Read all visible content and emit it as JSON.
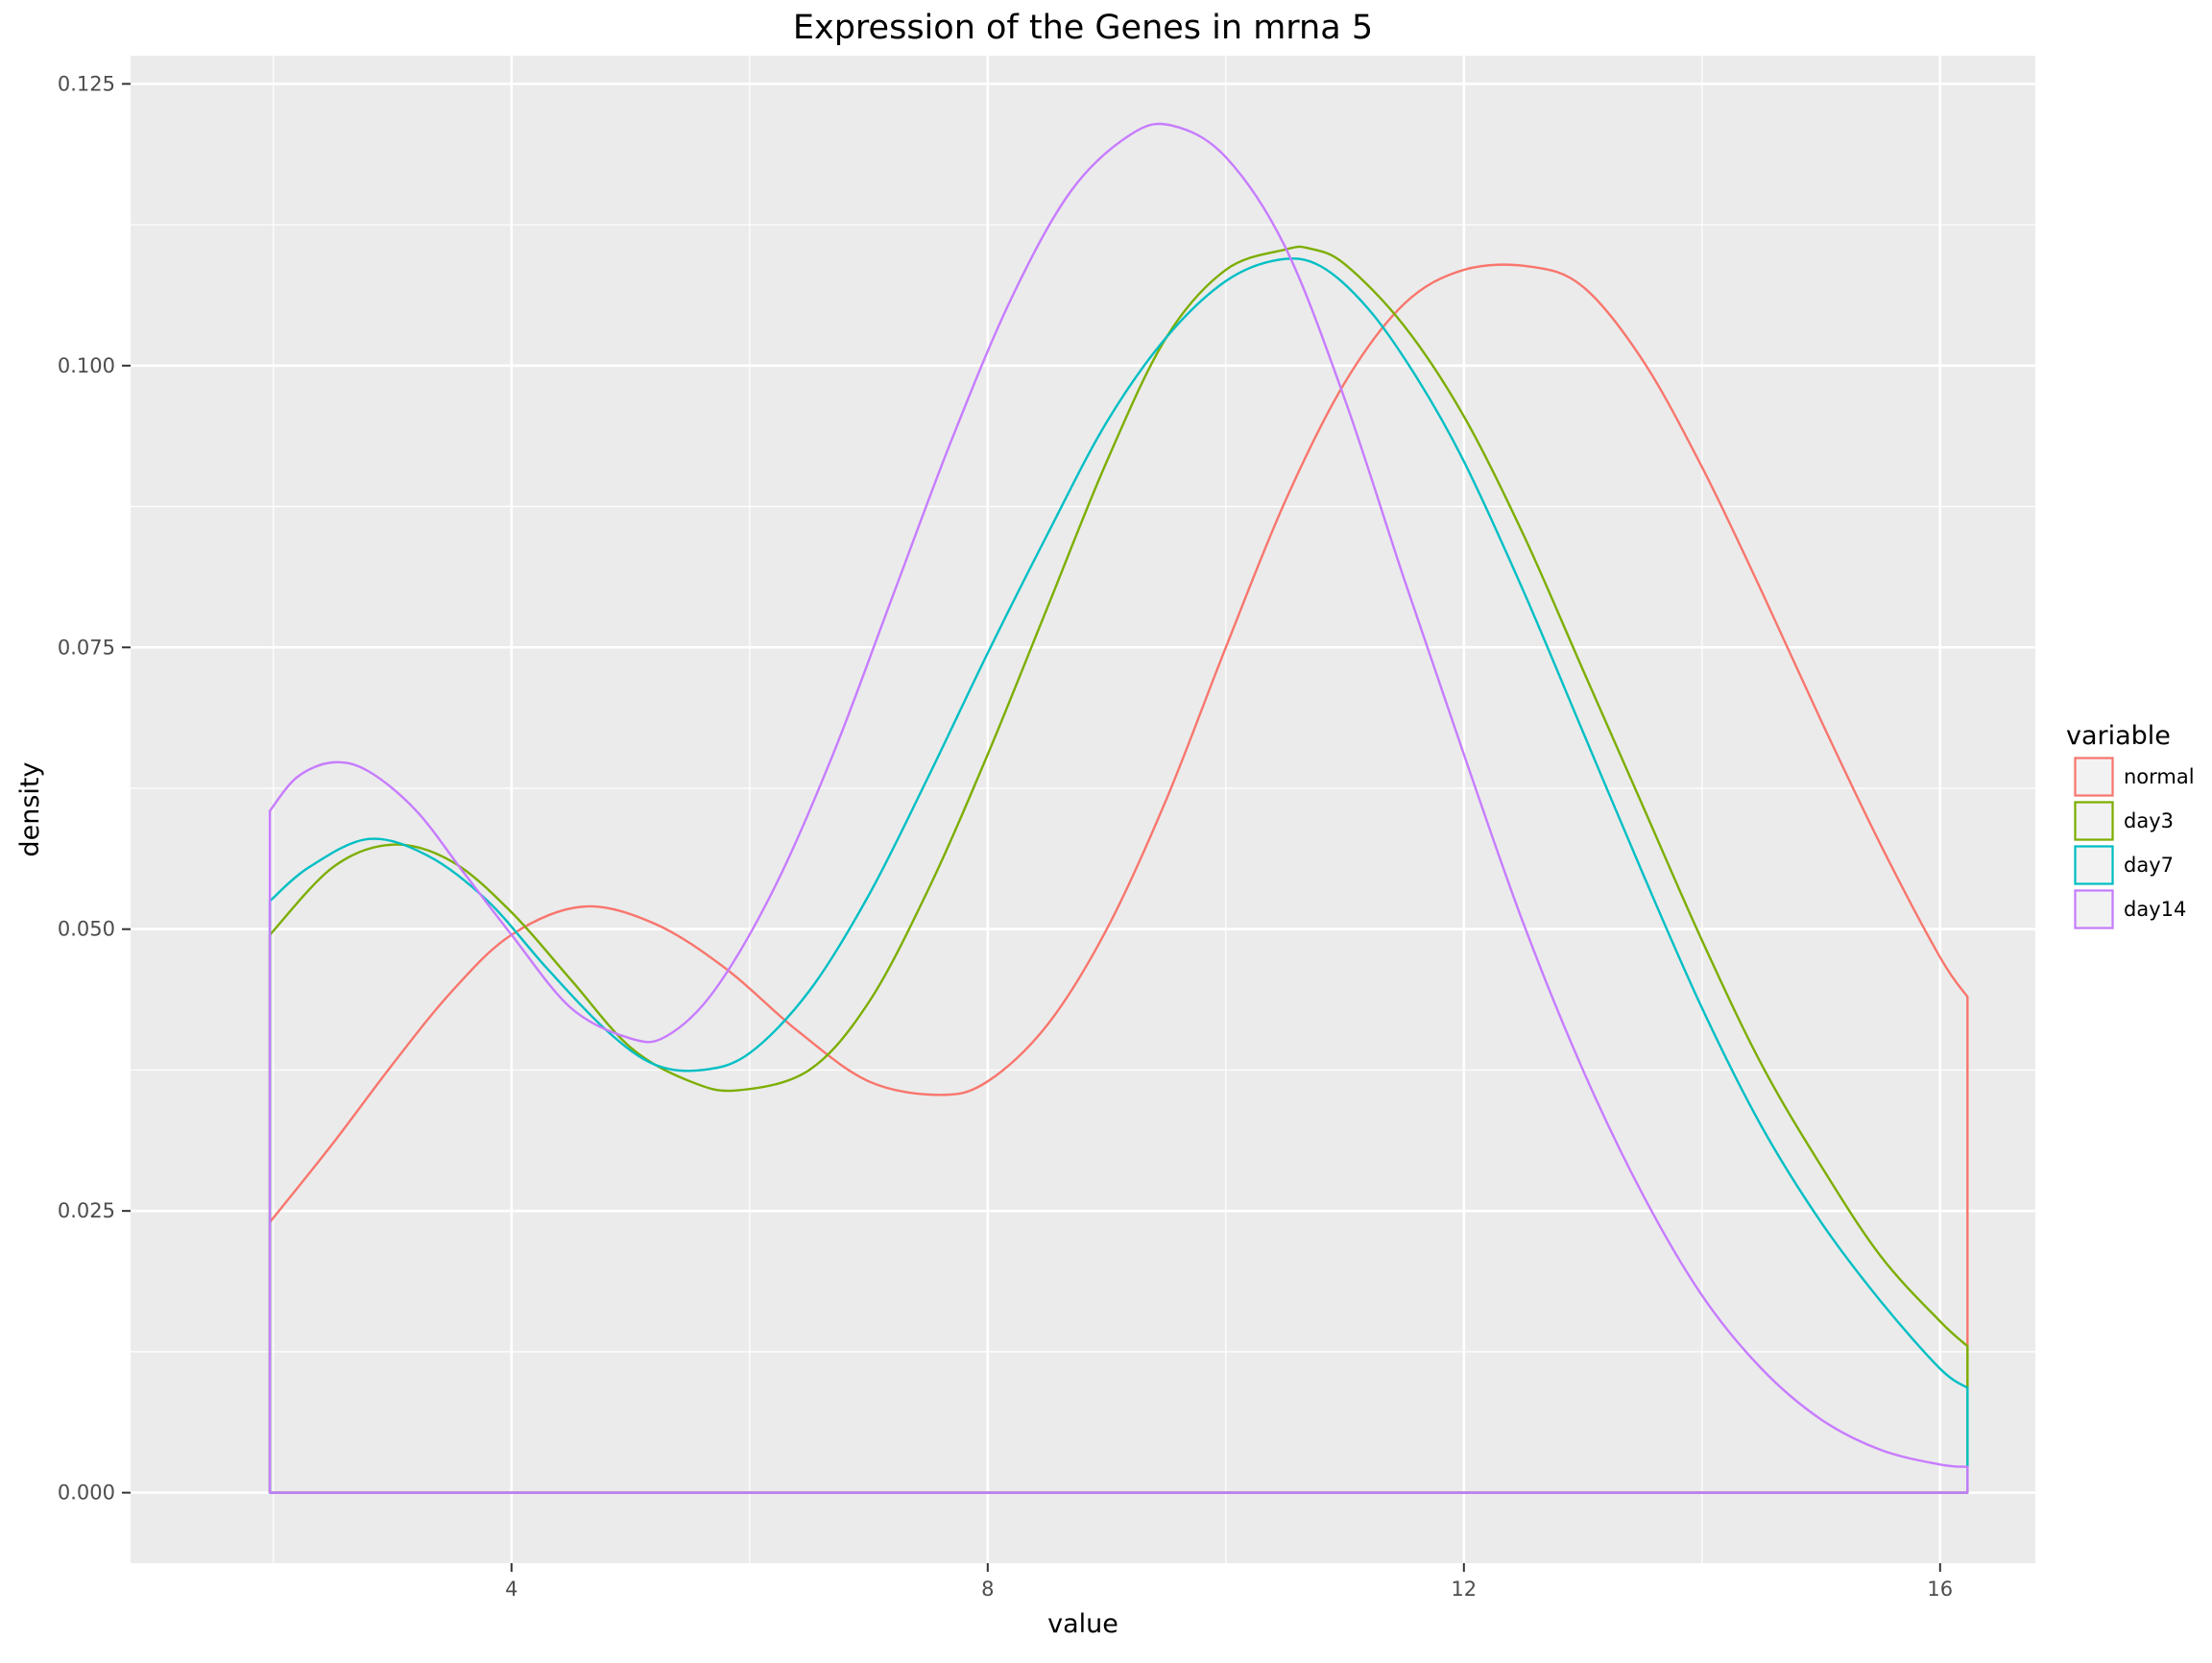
{
  "chart_data": {
    "type": "density",
    "title": "Expression of the Genes in mrna 5",
    "xlabel": "value",
    "ylabel": "density",
    "xlim": [
      0.8,
      16.8
    ],
    "ylim": [
      -0.00625,
      0.1275
    ],
    "x_ticks": [
      4,
      8,
      12,
      16
    ],
    "x_tick_labels": [
      "4",
      "8",
      "12",
      "16"
    ],
    "x_minor_ticks": [
      2,
      6,
      10,
      14
    ],
    "y_ticks": [
      0.0,
      0.025,
      0.05,
      0.075,
      0.1,
      0.125
    ],
    "y_tick_labels": [
      "0.000",
      "0.025",
      "0.050",
      "0.075",
      "0.100",
      "0.125"
    ],
    "grid": true,
    "background_color": "#ebebeb",
    "legend": {
      "title": "variable",
      "position": "right"
    },
    "curve_style": "outline polygon (closed to baseline at both x-ends)",
    "series": [
      {
        "name": "normal",
        "color": "#F8766D",
        "x": [
          1.97,
          2.5,
          3.0,
          3.5,
          4.0,
          4.6,
          5.2,
          5.8,
          6.4,
          7.0,
          7.6,
          8.0,
          8.5,
          9.0,
          9.5,
          10.0,
          10.5,
          11.0,
          11.5,
          12.0,
          12.55,
          13.0,
          13.5,
          14.0,
          14.5,
          15.0,
          15.5,
          16.0,
          16.23
        ],
        "y": [
          0.024,
          0.031,
          0.038,
          0.0445,
          0.0495,
          0.052,
          0.0505,
          0.0465,
          0.041,
          0.0365,
          0.0353,
          0.0365,
          0.0415,
          0.05,
          0.0615,
          0.075,
          0.088,
          0.0985,
          0.1055,
          0.1085,
          0.1088,
          0.107,
          0.1005,
          0.091,
          0.08,
          0.0685,
          0.0575,
          0.0475,
          0.044
        ]
      },
      {
        "name": "day3",
        "color": "#7CAE00",
        "x": [
          1.97,
          2.5,
          3.0,
          3.5,
          4.0,
          4.5,
          5.0,
          5.5,
          5.9,
          6.5,
          7.0,
          7.5,
          8.0,
          8.5,
          9.0,
          9.5,
          10.0,
          10.5,
          10.7,
          11.0,
          11.5,
          12.0,
          12.5,
          13.0,
          13.5,
          14.0,
          14.5,
          15.0,
          15.5,
          16.0,
          16.23
        ],
        "y": [
          0.0495,
          0.0555,
          0.0575,
          0.056,
          0.0515,
          0.0455,
          0.0395,
          0.0365,
          0.0357,
          0.0375,
          0.0435,
          0.0535,
          0.0655,
          0.0785,
          0.0915,
          0.1025,
          0.1085,
          0.1103,
          0.1104,
          0.109,
          0.1035,
          0.0955,
          0.085,
          0.073,
          0.061,
          0.049,
          0.038,
          0.029,
          0.021,
          0.0152,
          0.013
        ]
      },
      {
        "name": "day7",
        "color": "#00BFC4",
        "x": [
          1.97,
          2.3,
          2.8,
          3.3,
          3.8,
          4.3,
          4.8,
          5.2,
          5.6,
          6.0,
          6.5,
          7.0,
          7.5,
          8.0,
          8.5,
          9.0,
          9.5,
          10.0,
          10.45,
          10.8,
          11.2,
          11.6,
          12.0,
          12.5,
          13.0,
          13.5,
          14.0,
          14.5,
          15.0,
          15.5,
          16.0,
          16.23
        ],
        "y": [
          0.0525,
          0.0555,
          0.058,
          0.0565,
          0.0525,
          0.0465,
          0.041,
          0.038,
          0.0375,
          0.039,
          0.0445,
          0.053,
          0.0635,
          0.0745,
          0.085,
          0.095,
          0.1025,
          0.1075,
          0.1094,
          0.1088,
          0.105,
          0.099,
          0.0915,
          0.08,
          0.0675,
          0.055,
          0.043,
          0.0325,
          0.024,
          0.017,
          0.011,
          0.0093
        ]
      },
      {
        "name": "day14",
        "color": "#C77CFF",
        "x": [
          1.97,
          2.2,
          2.5,
          2.8,
          3.2,
          3.6,
          4.0,
          4.5,
          5.0,
          5.3,
          5.7,
          6.2,
          6.7,
          7.2,
          7.7,
          8.2,
          8.7,
          9.2,
          9.55,
          10.0,
          10.5,
          11.0,
          11.5,
          12.0,
          12.5,
          13.0,
          13.5,
          14.0,
          14.5,
          15.0,
          15.5,
          16.0,
          16.23
        ],
        "y": [
          0.0605,
          0.0635,
          0.0648,
          0.064,
          0.0605,
          0.055,
          0.0495,
          0.043,
          0.0403,
          0.0405,
          0.0445,
          0.0535,
          0.0655,
          0.0795,
          0.0935,
          0.106,
          0.1155,
          0.1205,
          0.1213,
          0.1185,
          0.1105,
          0.097,
          0.081,
          0.0655,
          0.0505,
          0.0375,
          0.0265,
          0.0175,
          0.011,
          0.0065,
          0.0038,
          0.0025,
          0.0023
        ]
      }
    ]
  }
}
